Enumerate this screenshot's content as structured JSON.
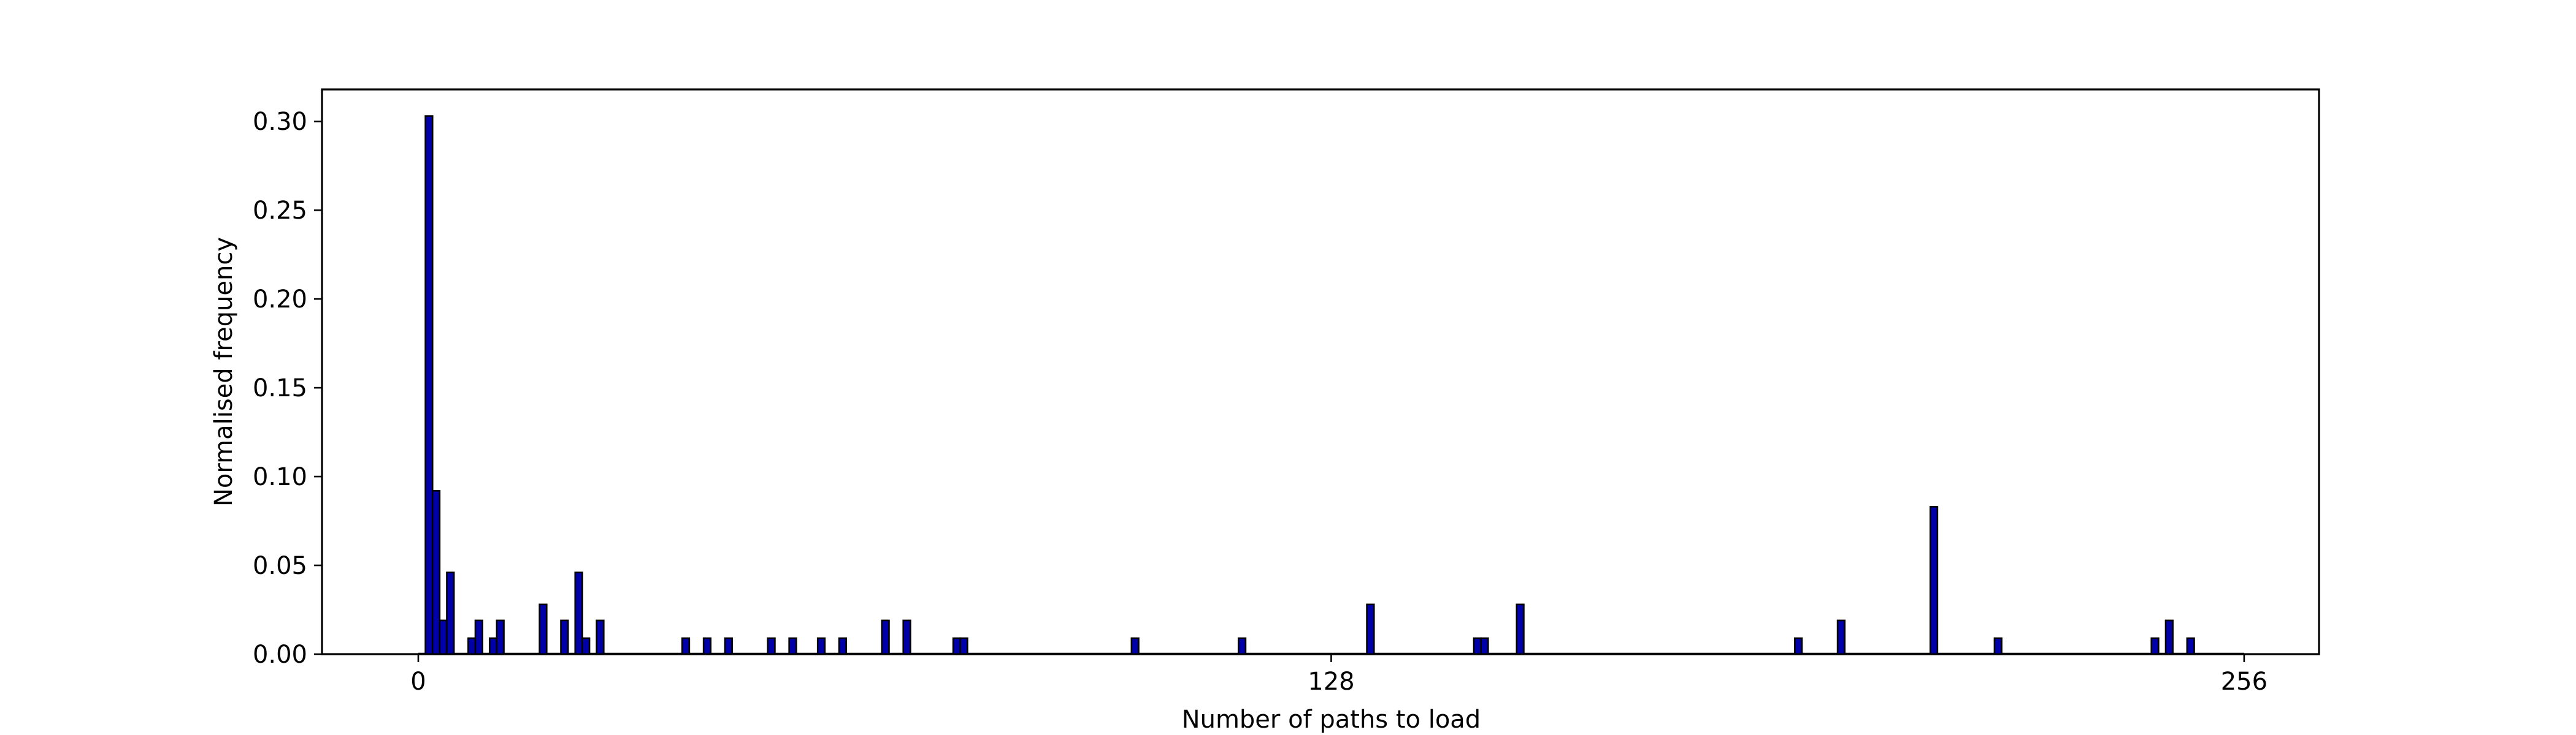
{
  "chart_data": {
    "type": "bar",
    "title": "",
    "xlabel": "Number of paths to load",
    "ylabel": "Normalised frequency",
    "xlim": [
      -13.5,
      266.5
    ],
    "ylim": [
      0,
      0.318
    ],
    "x_ticks": [
      {
        "value": 0,
        "label": "0"
      },
      {
        "value": 128,
        "label": "128"
      },
      {
        "value": 256,
        "label": "256"
      }
    ],
    "y_ticks": [
      {
        "value": 0.0,
        "label": "0.00"
      },
      {
        "value": 0.05,
        "label": "0.05"
      },
      {
        "value": 0.1,
        "label": "0.10"
      },
      {
        "value": 0.15,
        "label": "0.15"
      },
      {
        "value": 0.2,
        "label": "0.20"
      },
      {
        "value": 0.25,
        "label": "0.25"
      },
      {
        "value": 0.3,
        "label": "0.30"
      }
    ],
    "bar_color": "#0000aa",
    "edge_color": "#000000",
    "grid": false,
    "bins": [
      {
        "x": 1,
        "value": 0.303
      },
      {
        "x": 2,
        "value": 0.092
      },
      {
        "x": 3,
        "value": 0.019
      },
      {
        "x": 4,
        "value": 0.046
      },
      {
        "x": 7,
        "value": 0.009
      },
      {
        "x": 8,
        "value": 0.019
      },
      {
        "x": 10,
        "value": 0.009
      },
      {
        "x": 11,
        "value": 0.019
      },
      {
        "x": 17,
        "value": 0.028
      },
      {
        "x": 20,
        "value": 0.019
      },
      {
        "x": 22,
        "value": 0.046
      },
      {
        "x": 23,
        "value": 0.009
      },
      {
        "x": 25,
        "value": 0.019
      },
      {
        "x": 37,
        "value": 0.009
      },
      {
        "x": 40,
        "value": 0.009
      },
      {
        "x": 43,
        "value": 0.009
      },
      {
        "x": 49,
        "value": 0.009
      },
      {
        "x": 52,
        "value": 0.009
      },
      {
        "x": 56,
        "value": 0.009
      },
      {
        "x": 59,
        "value": 0.009
      },
      {
        "x": 65,
        "value": 0.019
      },
      {
        "x": 68,
        "value": 0.019
      },
      {
        "x": 75,
        "value": 0.009
      },
      {
        "x": 76,
        "value": 0.009
      },
      {
        "x": 100,
        "value": 0.009
      },
      {
        "x": 115,
        "value": 0.009
      },
      {
        "x": 133,
        "value": 0.028
      },
      {
        "x": 148,
        "value": 0.009
      },
      {
        "x": 149,
        "value": 0.009
      },
      {
        "x": 154,
        "value": 0.028
      },
      {
        "x": 193,
        "value": 0.009
      },
      {
        "x": 199,
        "value": 0.019
      },
      {
        "x": 212,
        "value": 0.083
      },
      {
        "x": 221,
        "value": 0.009
      },
      {
        "x": 243,
        "value": 0.009
      },
      {
        "x": 245,
        "value": 0.019
      },
      {
        "x": 248,
        "value": 0.009
      }
    ]
  }
}
